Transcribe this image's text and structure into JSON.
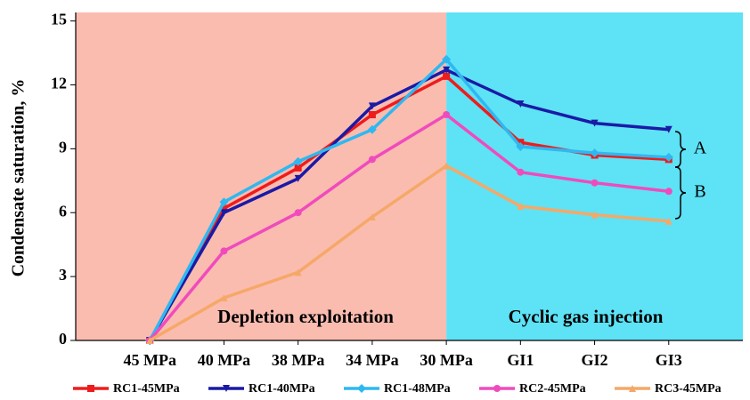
{
  "chart_data": {
    "type": "line",
    "y_label": "Condensate saturation, %",
    "categories": [
      "45 MPa",
      "40 MPa",
      "38 MPa",
      "34 MPa",
      "30 MPa",
      "GI1",
      "GI2",
      "GI3"
    ],
    "series": [
      {
        "name": "RC1-45MPa",
        "color": "#ee1c1c",
        "marker": "square",
        "values": [
          0,
          6.2,
          8.1,
          10.6,
          12.4,
          9.3,
          8.7,
          8.5
        ]
      },
      {
        "name": "RC1-40MPa",
        "color": "#1a1aa6",
        "marker": "triangle-down",
        "values": [
          0,
          6.0,
          7.6,
          11.0,
          12.7,
          11.1,
          10.2,
          9.9
        ]
      },
      {
        "name": "RC1-48MPa",
        "color": "#2fb8f0",
        "marker": "diamond",
        "values": [
          0,
          6.5,
          8.4,
          9.9,
          13.2,
          9.1,
          8.8,
          8.6
        ]
      },
      {
        "name": "RC2-45MPa",
        "color": "#f04bbd",
        "marker": "circle",
        "values": [
          0,
          4.2,
          6.0,
          8.5,
          10.6,
          7.9,
          7.4,
          7.0
        ]
      },
      {
        "name": "RC3-45MPa",
        "color": "#f5a868",
        "marker": "triangle-up",
        "values": [
          0,
          2.0,
          3.2,
          5.8,
          8.2,
          6.3,
          5.9,
          5.6
        ]
      }
    ],
    "regions": [
      {
        "label": "Depletion exploitation",
        "color": "#fbbcb0"
      },
      {
        "label": "Cyclic gas injection",
        "color": "#5ee2f5"
      }
    ],
    "annotations": [
      "A",
      "B"
    ],
    "ylim": [
      0,
      15.4
    ],
    "yticks": [
      0,
      3,
      6,
      9,
      12,
      15
    ]
  }
}
